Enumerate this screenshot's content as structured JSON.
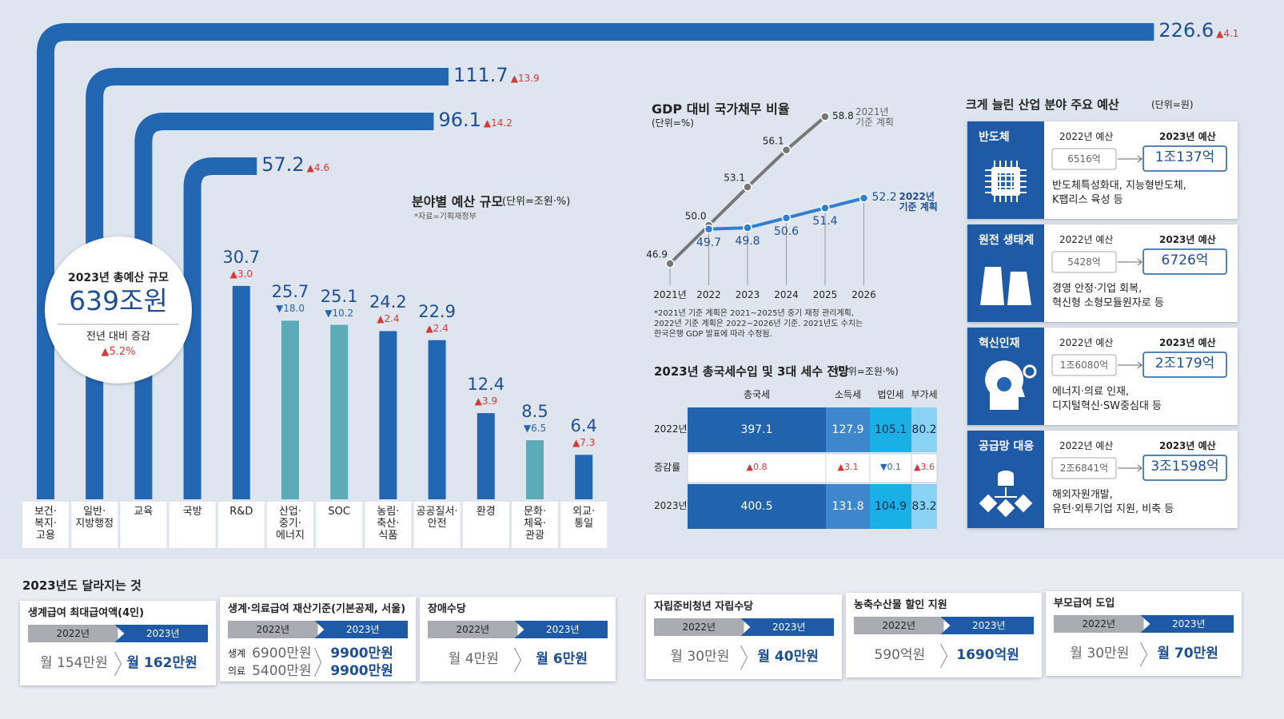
{
  "chart_data": [
    {
      "type": "pipe_bar",
      "title": "분야별 예산 규모",
      "subtitle": "(단위=조원·%)",
      "note": "*자료=기획재정부",
      "categories": [
        "보건·\n복지·\n고용",
        "일반·\n지방행정",
        "교육",
        "국방",
        "R&D",
        "산업·\n중기·\n에너지",
        "SOC",
        "농림·\n축산·\n식품",
        "공공질서·\n안전",
        "환경",
        "문화·\n체육·\n관광",
        "외교·\n통일"
      ],
      "values": [
        226.6,
        111.7,
        96.1,
        57.2,
        30.7,
        25.7,
        25.1,
        24.2,
        22.9,
        12.4,
        8.5,
        6.4
      ],
      "changes": [
        "▲4.1",
        "▲13.9",
        "▲14.2",
        "▲4.6",
        "▲3.0",
        "▼18.0",
        "▼10.2",
        "▲2.4",
        "▲2.4",
        "▲3.9",
        "▼6.5",
        "▲7.3"
      ],
      "colors": {
        "increase": "#2366b1",
        "decrease": "#5cabb8"
      }
    },
    {
      "type": "line",
      "title": "GDP 대비 국가채무 비율",
      "subtitle": "(단위=%)",
      "x": [
        "2021년",
        "2022",
        "2023",
        "2024",
        "2025",
        "2026"
      ],
      "series": [
        {
          "name": "2021년\n기준 계획",
          "color": "#777777",
          "values": [
            46.9,
            50.0,
            53.1,
            56.1,
            58.8,
            null
          ],
          "value_labels": [
            "46.9",
            "50.0",
            "53.1",
            "56.1",
            "58.8",
            null
          ]
        },
        {
          "name": "2022년\n기준 계획",
          "color": "#2f7fcf",
          "values": [
            null,
            49.7,
            49.8,
            50.6,
            51.4,
            52.2
          ]
        }
      ],
      "note": "*2021년 기준 계획은 2021~2025년 중기 재정 관리계획,\n2022년 기준 계획은 2022~2026년 기준. 2021년도 수치는\n한국은행 GDP 발표에 따라 수정됨."
    }
  ],
  "summary": {
    "title": "2023년 총예산 규모",
    "total": "639조원",
    "change_title": "전년 대비 증감",
    "change": "▲5.2%"
  },
  "tax_table": {
    "title": "2023년 총국세수입 및 3대 세수 전망",
    "subtitle": "(단위=조원·%)",
    "columns": [
      "총국세",
      "소득세",
      "법인세",
      "부가세"
    ],
    "rows": [
      {
        "label": "2022년",
        "cells": [
          397.1,
          127.9,
          105.1,
          80.2
        ]
      },
      {
        "label": "증감률",
        "cells": [
          "▲0.8",
          "▲3.1",
          "▼0.1",
          "▲3.6"
        ]
      },
      {
        "label": "2023년",
        "cells": [
          400.5,
          131.8,
          104.9,
          83.2
        ]
      }
    ]
  },
  "industry": {
    "title": "크게 늘린 산업 분야 주요 예산",
    "subtitle": "(단위=원)",
    "prev_label": "2022년 예산",
    "next_label": "2023년 예산",
    "items": [
      {
        "name": "반도체",
        "prev": "6516억",
        "next": "1조137억",
        "desc": "반도체특성화대, 지능형반도체,\nK팹리스 육성 등"
      },
      {
        "name": "원전 생태계",
        "prev": "5428억",
        "next": "6726억",
        "desc": "경영 안정·기업 회복,\n혁신형 소형모듈원자로 등"
      },
      {
        "name": "혁신인재",
        "prev": "1조6080억",
        "next": "2조179억",
        "desc": "에너지·의료 인재,\n디지털혁신·SW중심대 등"
      },
      {
        "name": "공급망 대응",
        "prev": "2조6841억",
        "next": "3조1598억",
        "desc": "해외자원개발,\n유턴·외투기업 지원, 비축 등"
      }
    ]
  },
  "changes_section": {
    "title": "2023년도 달라지는 것",
    "year_from": "2022년",
    "year_to": "2023년",
    "items": [
      {
        "title": "생계급여 최대급여액(4인)",
        "rows": [
          {
            "from": "월 154만원",
            "to": "월 162만원"
          }
        ]
      },
      {
        "title": "생계·의료급여 재산기준(기본공제, 서울)",
        "rows": [
          {
            "label": "생계",
            "from": "6900만원",
            "to": "9900만원"
          },
          {
            "label": "의료",
            "from": "5400만원",
            "to": "9900만원"
          }
        ]
      },
      {
        "title": "장애수당",
        "rows": [
          {
            "from": "월 4만원",
            "to": "월 6만원"
          }
        ]
      },
      {
        "title": "자립준비청년 자립수당",
        "rows": [
          {
            "from": "월 30만원",
            "to": "월 40만원"
          }
        ]
      },
      {
        "title": "농축수산물 할인 지원",
        "rows": [
          {
            "from": "590억원",
            "to": "1690억원"
          }
        ]
      },
      {
        "title": "부모급여 도입",
        "rows": [
          {
            "from": "월 30만원",
            "to": "월 70만원"
          }
        ]
      }
    ]
  }
}
